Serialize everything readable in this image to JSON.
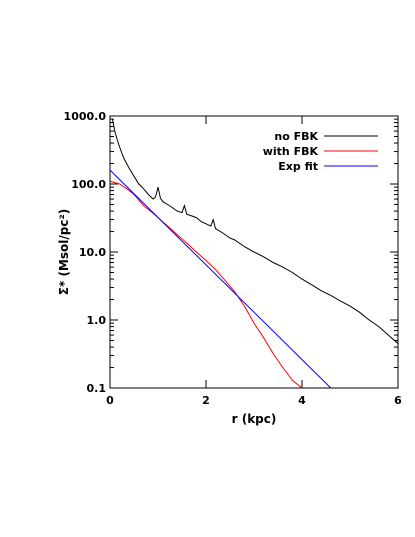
{
  "chart_data": {
    "type": "line",
    "xlabel": "r (kpc)",
    "ylabel": "Σ* (Msol/pc²)",
    "xlim": [
      0,
      6
    ],
    "ylim": [
      0.1,
      1000
    ],
    "y_scale": "log",
    "x_ticks": [
      0,
      2,
      4,
      6
    ],
    "x_tick_labels": [
      "0",
      "2",
      "4",
      "6"
    ],
    "y_ticks": [
      0.1,
      1,
      10,
      100,
      1000
    ],
    "y_tick_labels": [
      "0.1",
      "1.0",
      "10.0",
      "100.0",
      "1000.0"
    ],
    "grid": false,
    "legend_position": "top-right",
    "series": [
      {
        "name": "no FBK",
        "color": "#000000",
        "x": [
          0.05,
          0.1,
          0.15,
          0.2,
          0.25,
          0.3,
          0.4,
          0.5,
          0.6,
          0.7,
          0.8,
          0.9,
          0.95,
          1.0,
          1.05,
          1.1,
          1.2,
          1.3,
          1.4,
          1.5,
          1.55,
          1.6,
          1.7,
          1.8,
          1.9,
          2.0,
          2.1,
          2.15,
          2.2,
          2.3,
          2.4,
          2.5,
          2.6,
          2.8,
          3.0,
          3.2,
          3.4,
          3.6,
          3.8,
          4.0,
          4.2,
          4.4,
          4.6,
          4.8,
          5.0,
          5.2,
          5.4,
          5.6,
          5.8,
          6.0
        ],
        "y": [
          900,
          600,
          450,
          350,
          280,
          230,
          170,
          130,
          100,
          85,
          70,
          60,
          65,
          90,
          62,
          55,
          50,
          45,
          40,
          38,
          48,
          36,
          34,
          32,
          28,
          26,
          24,
          30,
          22,
          20,
          18,
          16,
          15,
          12,
          10,
          8.5,
          7,
          6,
          5,
          4,
          3.3,
          2.7,
          2.3,
          1.9,
          1.6,
          1.3,
          1.0,
          0.8,
          0.6,
          0.45
        ]
      },
      {
        "name": "with FBK",
        "color": "#ff0000",
        "x": [
          0.0,
          0.1,
          0.2,
          0.3,
          0.4,
          0.5,
          0.6,
          0.7,
          0.8,
          0.9,
          1.0,
          1.2,
          1.4,
          1.6,
          1.8,
          2.0,
          2.2,
          2.4,
          2.6,
          2.8,
          3.0,
          3.2,
          3.4,
          3.6,
          3.8,
          4.0
        ],
        "y": [
          110,
          105,
          100,
          90,
          80,
          70,
          58,
          48,
          42,
          37,
          32,
          24,
          18,
          13.5,
          10,
          7.5,
          5.5,
          3.8,
          2.6,
          1.6,
          0.9,
          0.55,
          0.32,
          0.2,
          0.13,
          0.1
        ]
      },
      {
        "name": "Exp fit",
        "color": "#0000ff",
        "x": [
          0.0,
          4.6
        ],
        "y": [
          160,
          0.1
        ]
      }
    ]
  }
}
